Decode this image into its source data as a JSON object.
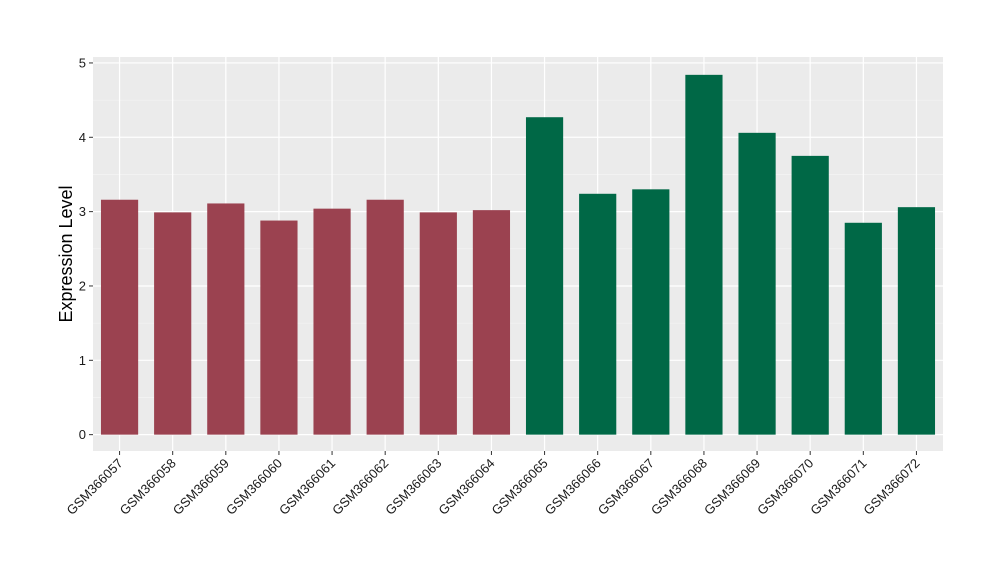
{
  "chart_data": {
    "type": "bar",
    "title": "",
    "xlabel": "",
    "ylabel": "Expression Level",
    "ylim": [
      -0.22,
      5.08
    ],
    "yticks": [
      0,
      1,
      2,
      3,
      4,
      5
    ],
    "grid": true,
    "categories": [
      "GSM366057",
      "GSM366058",
      "GSM366059",
      "GSM366060",
      "GSM366061",
      "GSM366062",
      "GSM366063",
      "GSM366064",
      "GSM366065",
      "GSM366066",
      "GSM366067",
      "GSM366068",
      "GSM366069",
      "GSM366070",
      "GSM366071",
      "GSM366072"
    ],
    "values": [
      3.16,
      2.99,
      3.11,
      2.88,
      3.04,
      3.16,
      2.99,
      3.02,
      4.27,
      3.24,
      3.3,
      4.84,
      4.06,
      3.75,
      2.85,
      3.06
    ],
    "bar_colors": [
      "#9b4250",
      "#9b4250",
      "#9b4250",
      "#9b4250",
      "#9b4250",
      "#9b4250",
      "#9b4250",
      "#9b4250",
      "#006846",
      "#006846",
      "#006846",
      "#006846",
      "#006846",
      "#006846",
      "#006846",
      "#006846"
    ],
    "colors": {
      "panel_bg": "#ebebeb",
      "grid_major": "#ffffff",
      "group_a": "#9b4250",
      "group_b": "#006846"
    }
  }
}
